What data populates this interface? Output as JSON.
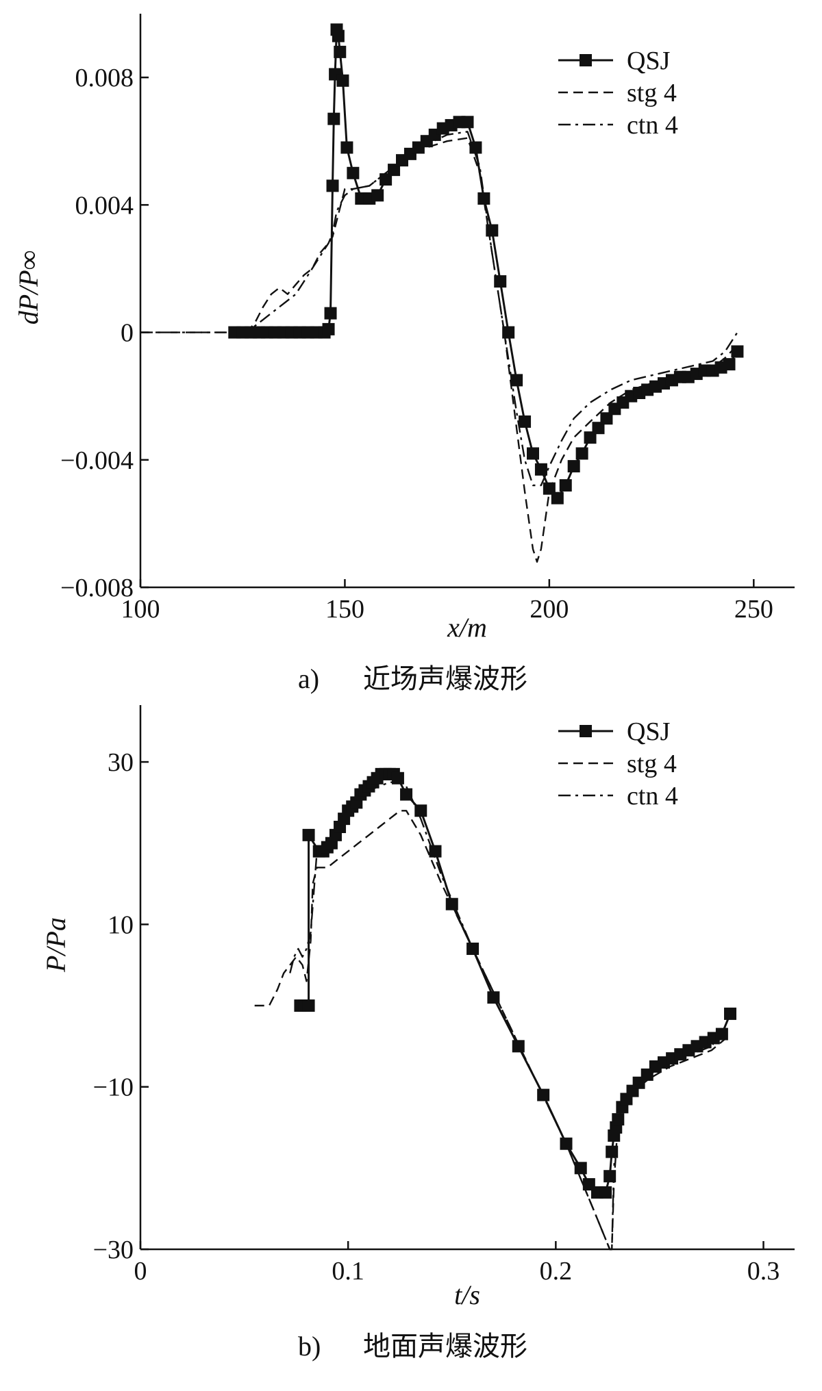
{
  "chart_data": [
    {
      "type": "line",
      "xlabel": "x/m",
      "ylabel": "dP/P∞",
      "caption_index": "a)",
      "caption_text": "近场声爆波形",
      "xlim": [
        100,
        260
      ],
      "ylim": [
        -0.008,
        0.01
      ],
      "xticks": [
        100,
        150,
        200,
        250
      ],
      "xtick_labels": [
        "100",
        "150",
        "200",
        "250"
      ],
      "yticks": [
        0.008,
        0.004,
        0,
        -0.004,
        -0.008
      ],
      "ytick_labels": [
        "0.008",
        "0.004",
        "0",
        "−0.004",
        "−0.008"
      ],
      "grid": false,
      "legend_position": "top-right",
      "series": [
        {
          "name": "QSJ",
          "style": "solid-square-markers",
          "x": [
            123,
            125,
            127,
            129,
            131,
            133,
            135,
            137,
            139,
            141,
            143,
            145,
            146,
            146.5,
            147,
            147.3,
            147.6,
            148,
            148.4,
            148.8,
            149.5,
            150.5,
            152,
            154,
            156,
            158,
            160,
            162,
            164,
            166,
            168,
            170,
            172,
            174,
            176,
            178,
            180,
            182,
            184,
            186,
            188,
            190,
            192,
            194,
            196,
            198,
            200,
            202,
            204,
            206,
            208,
            210,
            212,
            214,
            216,
            218,
            220,
            222,
            224,
            226,
            228,
            230,
            232,
            234,
            236,
            238,
            240,
            242,
            244,
            246
          ],
          "y": [
            0,
            0,
            0,
            0,
            0,
            0,
            0,
            0,
            0,
            0,
            0,
            0,
            0.0001,
            0.0006,
            0.0046,
            0.0067,
            0.0081,
            0.0095,
            0.0093,
            0.0088,
            0.0079,
            0.0058,
            0.005,
            0.0042,
            0.0042,
            0.0043,
            0.0048,
            0.0051,
            0.0054,
            0.0056,
            0.0058,
            0.006,
            0.0062,
            0.0064,
            0.0065,
            0.0066,
            0.0066,
            0.0058,
            0.0042,
            0.0032,
            0.0016,
            0.0,
            -0.0015,
            -0.0028,
            -0.0038,
            -0.0043,
            -0.0049,
            -0.0052,
            -0.0048,
            -0.0042,
            -0.0038,
            -0.0033,
            -0.003,
            -0.0027,
            -0.0024,
            -0.0022,
            -0.002,
            -0.0019,
            -0.0018,
            -0.0017,
            -0.0016,
            -0.0015,
            -0.0014,
            -0.0014,
            -0.0013,
            -0.0012,
            -0.0012,
            -0.0011,
            -0.001,
            -0.0006
          ]
        },
        {
          "name": "stg 4",
          "style": "dashed",
          "x": [
            100,
            123,
            126,
            128,
            130,
            132,
            134,
            136,
            138,
            140,
            142,
            144,
            146,
            147,
            148,
            149,
            150,
            152,
            156,
            160,
            165,
            170,
            175,
            180,
            183,
            186,
            189,
            192,
            194,
            196,
            197,
            198,
            200,
            203,
            206,
            210,
            215,
            220,
            230,
            240,
            243,
            246
          ],
          "y": [
            0,
            0,
            0,
            0.0003,
            0.0008,
            0.0012,
            0.0014,
            0.0012,
            0.0015,
            0.0018,
            0.002,
            0.0025,
            0.0028,
            0.003,
            0.0035,
            0.004,
            0.0045,
            0.0045,
            0.0046,
            0.005,
            0.0055,
            0.0058,
            0.006,
            0.0061,
            0.005,
            0.0025,
            0.0,
            -0.003,
            -0.005,
            -0.0068,
            -0.0072,
            -0.0068,
            -0.005,
            -0.004,
            -0.0033,
            -0.0028,
            -0.0022,
            -0.0018,
            -0.0014,
            -0.0011,
            -0.0008,
            -0.0004
          ]
        },
        {
          "name": "ctn 4",
          "style": "dash-dot",
          "x": [
            100,
            126,
            128,
            130,
            132,
            134,
            136,
            138,
            140,
            142,
            144,
            146,
            147,
            148,
            150,
            152,
            156,
            160,
            165,
            170,
            175,
            180,
            183,
            186,
            189,
            192,
            194,
            196,
            198,
            200,
            203,
            206,
            210,
            215,
            220,
            230,
            240,
            243,
            246
          ],
          "y": [
            0,
            0,
            0.0002,
            0.0004,
            0.0006,
            0.0008,
            0.001,
            0.0012,
            0.0016,
            0.002,
            0.0024,
            0.0028,
            0.0031,
            0.0038,
            0.0043,
            0.0045,
            0.0046,
            0.005,
            0.0055,
            0.0059,
            0.0062,
            0.0063,
            0.0052,
            0.0025,
            0.0,
            -0.0025,
            -0.004,
            -0.0048,
            -0.0048,
            -0.0042,
            -0.0034,
            -0.0027,
            -0.0022,
            -0.0018,
            -0.0015,
            -0.0012,
            -0.0009,
            -0.0006,
            0.0
          ]
        }
      ]
    },
    {
      "type": "line",
      "xlabel": "t/s",
      "ylabel": "P/Pa",
      "caption_index": "b)",
      "caption_text": "地面声爆波形",
      "xlim": [
        0,
        0.315
      ],
      "ylim": [
        -30,
        37
      ],
      "xticks": [
        0,
        0.1,
        0.2,
        0.3
      ],
      "xtick_labels": [
        "0",
        "0.1",
        "0.2",
        "0.3"
      ],
      "yticks": [
        30,
        10,
        -10,
        -30
      ],
      "ytick_labels": [
        "30",
        "10",
        "−10",
        "−30"
      ],
      "grid": false,
      "legend_position": "top-right",
      "series": [
        {
          "name": "QSJ",
          "style": "solid-square-markers",
          "x": [
            0.077,
            0.079,
            0.081,
            0.081,
            0.086,
            0.088,
            0.09,
            0.092,
            0.094,
            0.096,
            0.098,
            0.1,
            0.102,
            0.104,
            0.106,
            0.108,
            0.11,
            0.112,
            0.114,
            0.116,
            0.118,
            0.12,
            0.122,
            0.124,
            0.128,
            0.135,
            0.142,
            0.15,
            0.16,
            0.17,
            0.182,
            0.194,
            0.205,
            0.212,
            0.216,
            0.22,
            0.224,
            0.226,
            0.227,
            0.228,
            0.229,
            0.23,
            0.232,
            0.234,
            0.237,
            0.24,
            0.244,
            0.248,
            0.252,
            0.256,
            0.26,
            0.264,
            0.268,
            0.272,
            0.276,
            0.28,
            0.284
          ],
          "y": [
            0,
            0,
            0,
            21,
            19,
            19,
            19.5,
            20,
            21,
            22,
            23,
            24,
            24.5,
            25,
            26,
            26.5,
            27,
            27.5,
            28,
            28.5,
            28.5,
            28.5,
            28.5,
            28,
            26,
            24,
            19,
            12.5,
            7,
            1,
            -5,
            -11,
            -17,
            -20,
            -22,
            -23,
            -23,
            -21,
            -18,
            -16,
            -15,
            -14,
            -12.5,
            -11.5,
            -10.5,
            -9.5,
            -8.5,
            -7.5,
            -7,
            -6.5,
            -6,
            -5.5,
            -5,
            -4.5,
            -4,
            -3.5,
            -1
          ]
        },
        {
          "name": "stg 4",
          "style": "dashed",
          "x": [
            0.055,
            0.062,
            0.066,
            0.069,
            0.072,
            0.075,
            0.078,
            0.08,
            0.082,
            0.083,
            0.085,
            0.09,
            0.095,
            0.1,
            0.105,
            0.11,
            0.115,
            0.12,
            0.125,
            0.128,
            0.135,
            0.145,
            0.16,
            0.175,
            0.19,
            0.205,
            0.218,
            0.226,
            0.227,
            0.228,
            0.23,
            0.235,
            0.245,
            0.255,
            0.265,
            0.275,
            0.282
          ],
          "y": [
            0,
            0,
            2,
            4,
            5,
            6,
            5,
            3,
            8,
            15,
            17,
            17,
            18,
            19,
            20,
            21,
            22,
            23,
            24,
            24,
            21,
            15,
            7,
            -1,
            -9,
            -17,
            -25,
            -30,
            -30,
            -22,
            -14,
            -11,
            -9,
            -7.5,
            -6.5,
            -5.5,
            -4
          ]
        },
        {
          "name": "ctn 4",
          "style": "dash-dot",
          "x": [
            0.072,
            0.074,
            0.076,
            0.078,
            0.08,
            0.082,
            0.085,
            0.09,
            0.095,
            0.1,
            0.105,
            0.11,
            0.115,
            0.12,
            0.125,
            0.128,
            0.135,
            0.145,
            0.16,
            0.175,
            0.19,
            0.205,
            0.218,
            0.226,
            0.227,
            0.228,
            0.23,
            0.235,
            0.245,
            0.255,
            0.265,
            0.275,
            0.282
          ],
          "y": [
            4,
            6,
            7,
            6,
            7,
            9,
            19,
            20,
            22,
            24,
            25.5,
            26.5,
            27,
            27.5,
            27.5,
            27,
            23,
            16,
            7,
            -1,
            -9,
            -17,
            -25,
            -30,
            -30,
            -20,
            -14,
            -11,
            -8.5,
            -7,
            -6,
            -5,
            -2.5
          ]
        }
      ]
    }
  ]
}
